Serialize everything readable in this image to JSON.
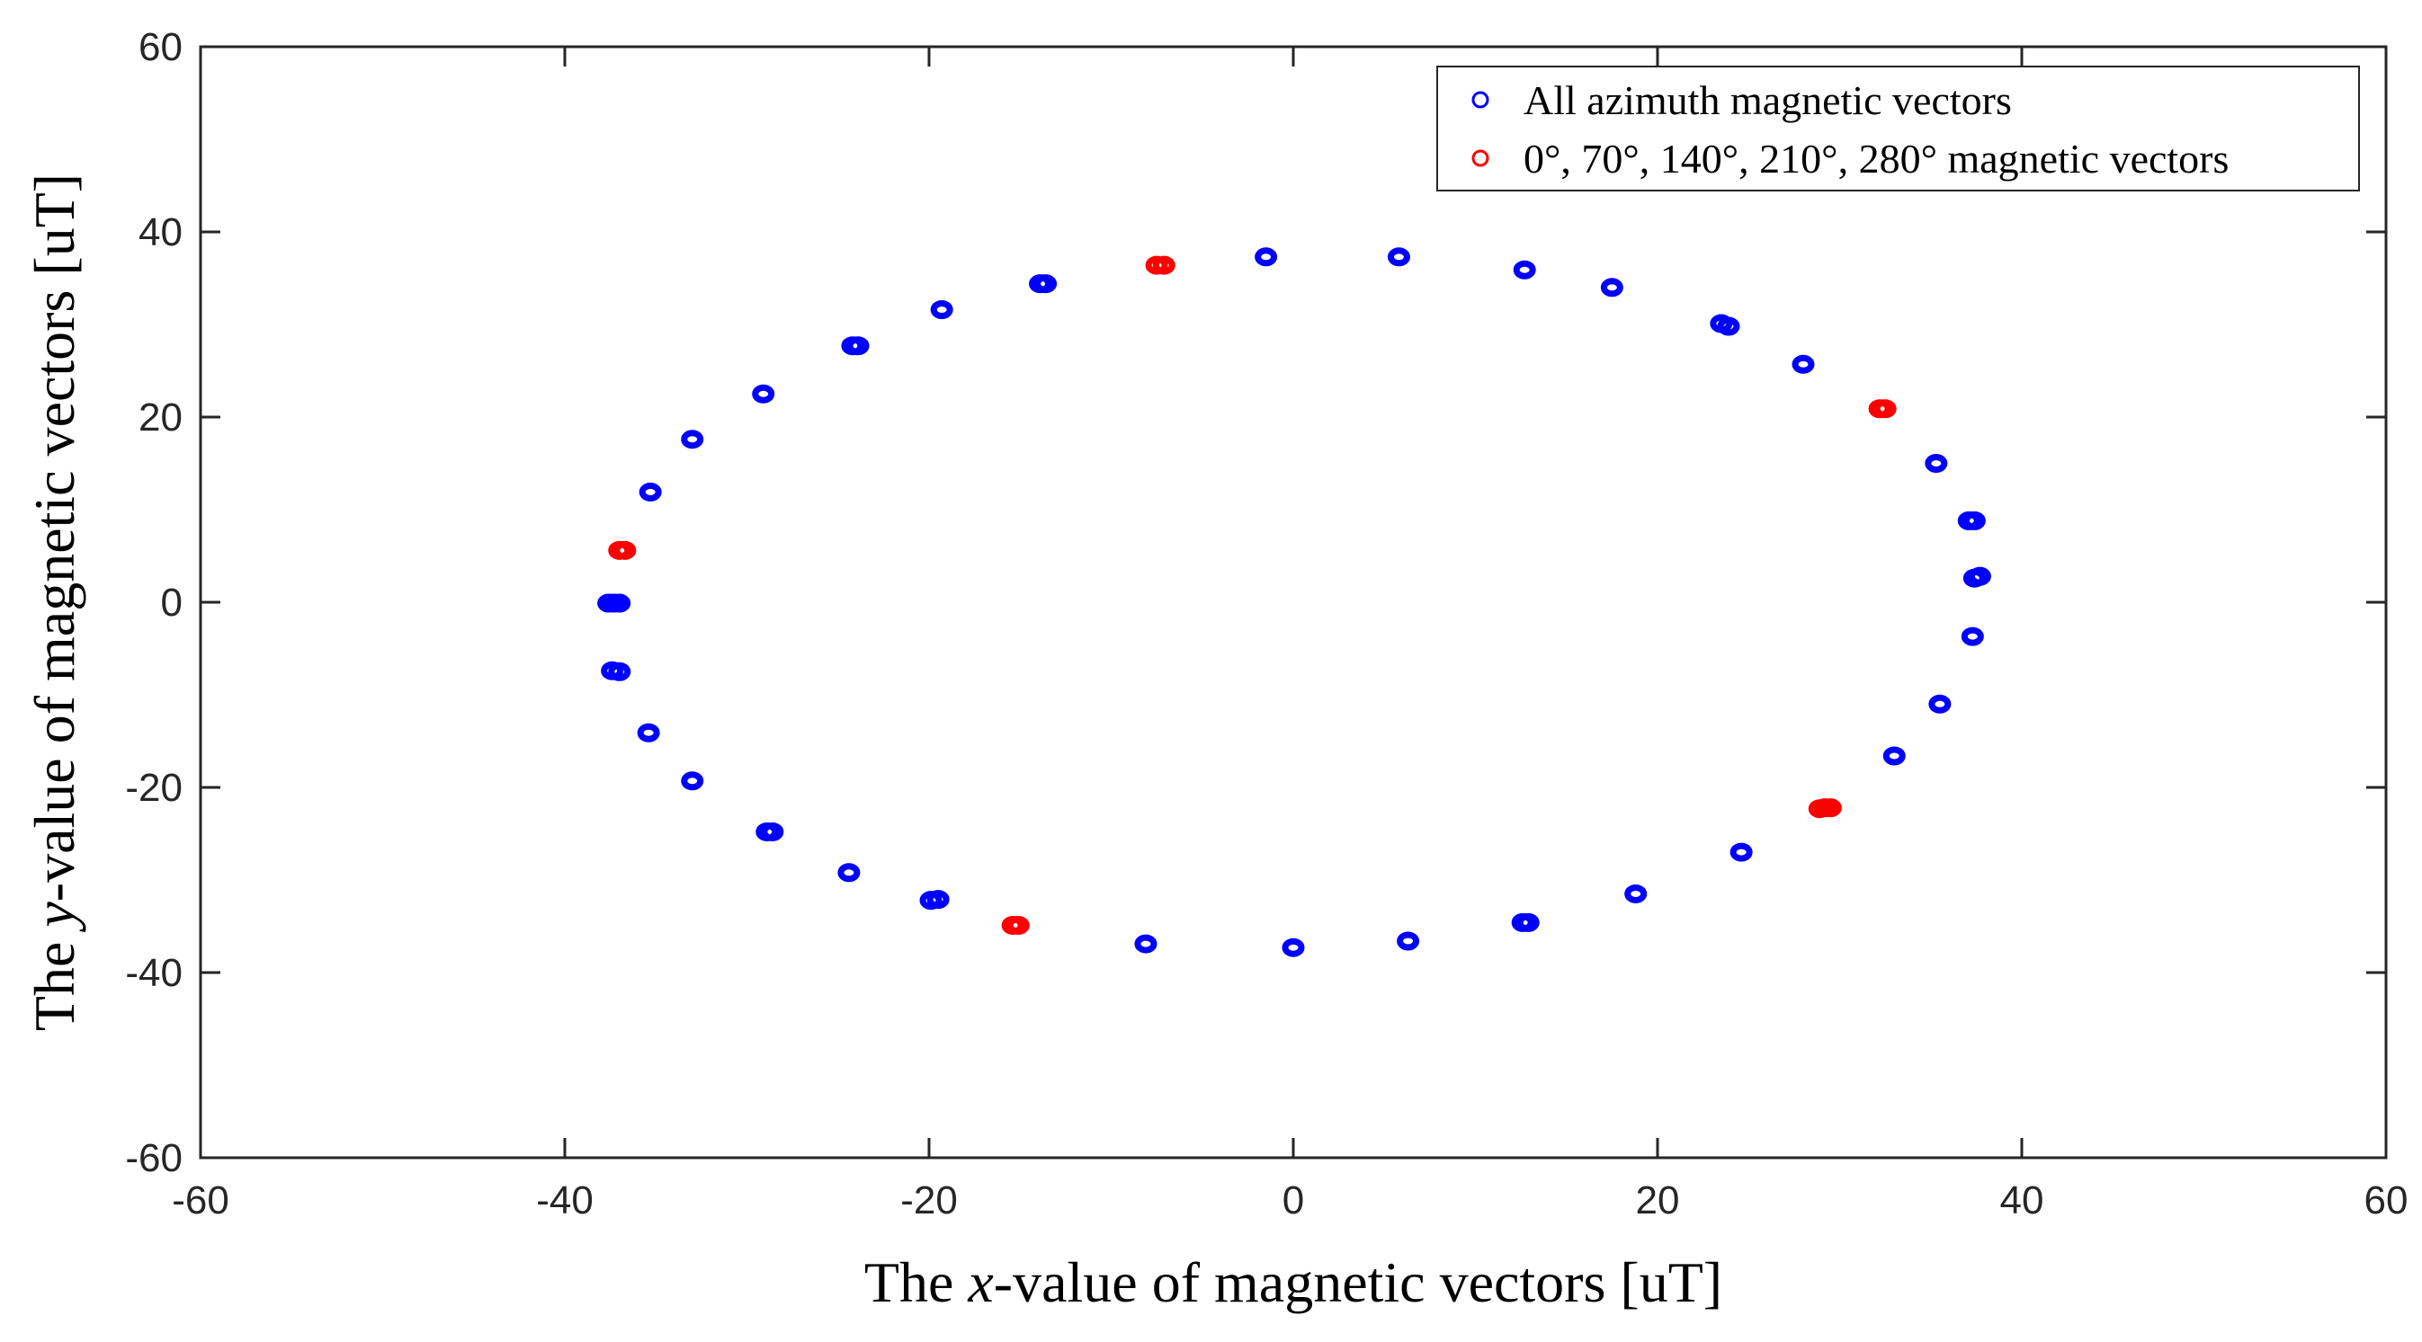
{
  "chart_data": {
    "type": "scatter",
    "title": "",
    "xlabel": {
      "prefix": "The ",
      "var": "x",
      "suffix": "-value of magnetic vectors [uT]"
    },
    "ylabel": {
      "prefix": "The ",
      "var": "y",
      "suffix": "-value of magnetic vectors [uT]"
    },
    "xlim": [
      -60,
      60
    ],
    "ylim": [
      -60,
      60
    ],
    "xticks": [
      -60,
      -40,
      -20,
      0,
      20,
      40,
      60
    ],
    "yticks": [
      -60,
      -40,
      -20,
      0,
      20,
      40,
      60
    ],
    "xtick_labels": [
      "-60",
      "-40",
      "-20",
      "0",
      "20",
      "40",
      "60"
    ],
    "ytick_labels": [
      "-60",
      "-40",
      "-20",
      "0",
      "20",
      "40",
      "60"
    ],
    "grid": false,
    "legend_position": "top-right",
    "series": [
      {
        "name": "All azimuth magnetic vectors",
        "color": "#0000ff",
        "marker": "circle-open",
        "points": [
          [
            -1.5,
            37.3
          ],
          [
            5.8,
            37.3
          ],
          [
            12.7,
            35.9
          ],
          [
            17.5,
            34.0
          ],
          [
            23.5,
            30.1
          ],
          [
            23.9,
            29.8
          ],
          [
            28.0,
            25.7
          ],
          [
            35.3,
            15.0
          ],
          [
            37.1,
            8.8
          ],
          [
            37.4,
            8.8
          ],
          [
            37.4,
            2.6
          ],
          [
            37.7,
            2.8
          ],
          [
            37.3,
            -3.7
          ],
          [
            35.5,
            -11.0
          ],
          [
            33.0,
            -16.6
          ],
          [
            24.6,
            -27.0
          ],
          [
            18.8,
            -31.5
          ],
          [
            12.6,
            -34.6
          ],
          [
            12.9,
            -34.6
          ],
          [
            6.3,
            -36.6
          ],
          [
            0.0,
            -37.3
          ],
          [
            -8.1,
            -36.9
          ],
          [
            -19.5,
            -32.1
          ],
          [
            -19.9,
            -32.2
          ],
          [
            -24.4,
            -29.2
          ],
          [
            -28.9,
            -24.8
          ],
          [
            -28.6,
            -24.8
          ],
          [
            -33.0,
            -19.3
          ],
          [
            -35.4,
            -14.1
          ],
          [
            -37.0,
            -7.5
          ],
          [
            -37.4,
            -7.4
          ],
          [
            -37.6,
            -0.1
          ],
          [
            -37.3,
            -0.1
          ],
          [
            -37.0,
            -0.1
          ],
          [
            -35.3,
            11.9
          ],
          [
            -33.0,
            17.6
          ],
          [
            -29.1,
            22.5
          ],
          [
            -24.2,
            27.7
          ],
          [
            -23.9,
            27.7
          ],
          [
            -19.3,
            31.6
          ],
          [
            -13.9,
            34.4
          ],
          [
            -13.6,
            34.4
          ]
        ]
      },
      {
        "name": "0°, 70°, 140°, 210°, 280° magnetic vectors",
        "color": "#ff0000",
        "marker": "circle-open",
        "points": [
          [
            -7.5,
            36.4
          ],
          [
            -7.1,
            36.4
          ],
          [
            32.2,
            20.9
          ],
          [
            32.5,
            20.9
          ],
          [
            28.9,
            -22.3
          ],
          [
            29.2,
            -22.2
          ],
          [
            29.5,
            -22.2
          ],
          [
            -15.4,
            -34.9
          ],
          [
            -15.1,
            -34.9
          ],
          [
            -37.0,
            5.6
          ],
          [
            -36.7,
            5.6
          ]
        ]
      }
    ]
  }
}
